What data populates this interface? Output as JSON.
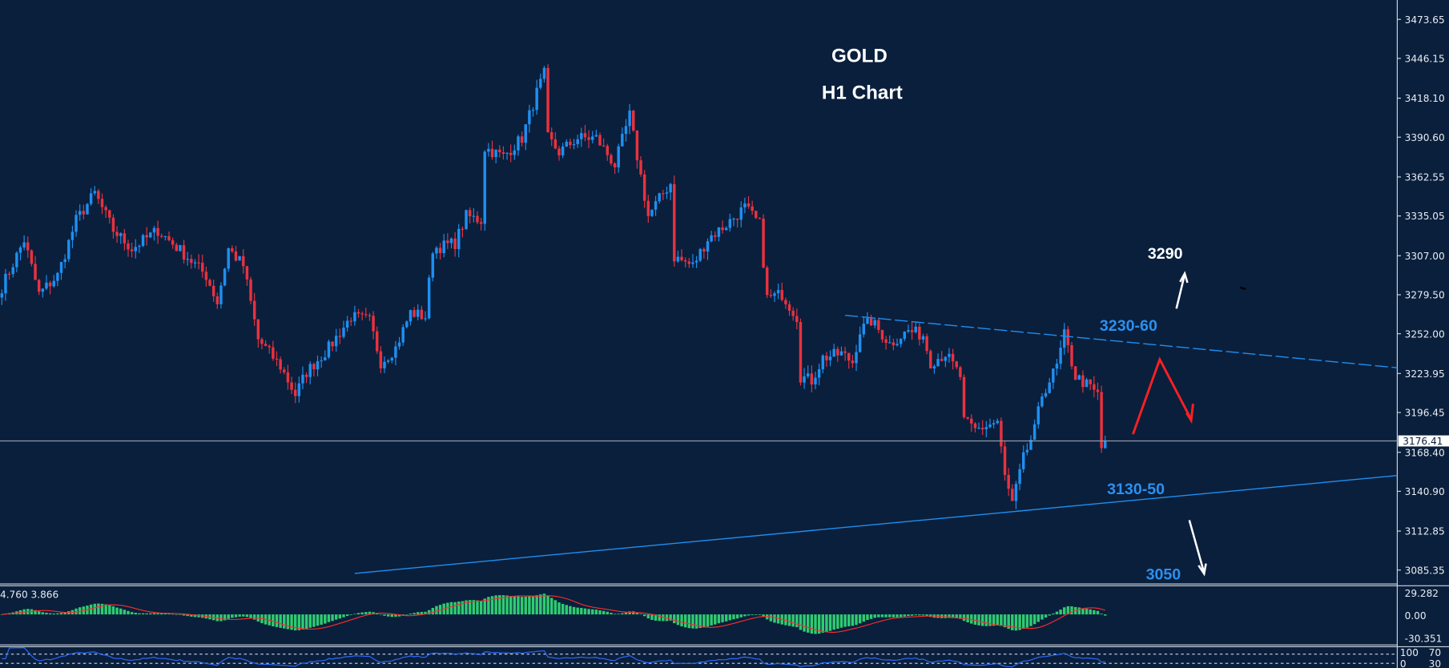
{
  "chart_data": {
    "type": "candlestick",
    "title": "GOLD",
    "subtitle": "H1 Chart",
    "colors": {
      "background": "#0a1f3c",
      "up": "#1e8ff0",
      "down": "#e8323f",
      "trendline": "#1e8ff0",
      "macd_hist": "#2ecc71",
      "macd_signal": "#ff2b2b",
      "rsi": "#2f6bff"
    },
    "ylim": [
      3085.35,
      3473.65
    ],
    "y_ticks": [
      "3473.65",
      "3446.15",
      "3418.10",
      "3390.60",
      "3362.55",
      "3335.05",
      "3307.00",
      "3279.50",
      "3252.00",
      "3223.95",
      "3196.45",
      "3168.40",
      "3140.90",
      "3112.85",
      "3085.35"
    ],
    "current_price": "3176.41",
    "bar_count": 298,
    "price_path": [
      [
        0,
        3285
      ],
      [
        6,
        3318
      ],
      [
        10,
        3280
      ],
      [
        15,
        3293
      ],
      [
        20,
        3332
      ],
      [
        25,
        3351
      ],
      [
        30,
        3325
      ],
      [
        35,
        3312
      ],
      [
        42,
        3325
      ],
      [
        50,
        3306
      ],
      [
        55,
        3293
      ],
      [
        58,
        3274
      ],
      [
        61,
        3312
      ],
      [
        65,
        3300
      ],
      [
        69,
        3248
      ],
      [
        75,
        3229
      ],
      [
        79,
        3209
      ],
      [
        82,
        3225
      ],
      [
        88,
        3242
      ],
      [
        94,
        3264
      ],
      [
        99,
        3261
      ],
      [
        102,
        3232
      ],
      [
        106,
        3242
      ],
      [
        110,
        3267
      ],
      [
        114,
        3264
      ],
      [
        116,
        3312
      ],
      [
        122,
        3316
      ],
      [
        125,
        3335
      ],
      [
        129,
        3332
      ],
      [
        130,
        3383
      ],
      [
        135,
        3377
      ],
      [
        140,
        3390
      ],
      [
        144,
        3422
      ],
      [
        146,
        3435
      ],
      [
        147,
        3390
      ],
      [
        150,
        3380
      ],
      [
        155,
        3390
      ],
      [
        160,
        3390
      ],
      [
        165,
        3371
      ],
      [
        169,
        3406
      ],
      [
        171,
        3377
      ],
      [
        174,
        3335
      ],
      [
        178,
        3351
      ],
      [
        180,
        3358
      ],
      [
        181,
        3306
      ],
      [
        186,
        3300
      ],
      [
        190,
        3319
      ],
      [
        195,
        3329
      ],
      [
        200,
        3341
      ],
      [
        204,
        3329
      ],
      [
        206,
        3277
      ],
      [
        210,
        3280
      ],
      [
        214,
        3264
      ],
      [
        215,
        3222
      ],
      [
        218,
        3219
      ],
      [
        221,
        3235
      ],
      [
        226,
        3238
      ],
      [
        229,
        3232
      ],
      [
        231,
        3254
      ],
      [
        234,
        3261
      ],
      [
        239,
        3245
      ],
      [
        244,
        3254
      ],
      [
        248,
        3251
      ],
      [
        250,
        3232
      ],
      [
        254,
        3238
      ],
      [
        258,
        3222
      ],
      [
        259,
        3190
      ],
      [
        262,
        3184
      ],
      [
        268,
        3190
      ],
      [
        270,
        3151
      ],
      [
        272,
        3132
      ],
      [
        275,
        3164
      ],
      [
        278,
        3184
      ],
      [
        280,
        3209
      ],
      [
        284,
        3229
      ],
      [
        286,
        3251
      ],
      [
        289,
        3222
      ],
      [
        292,
        3216
      ],
      [
        295,
        3209
      ],
      [
        296,
        3171
      ],
      [
        297,
        3176.41
      ]
    ],
    "trendlines": [
      {
        "style": "dashed",
        "from": [
          227,
          3265
        ],
        "to_price_at_axis": 3228
      },
      {
        "style": "solid",
        "from": [
          95,
          3083
        ],
        "to_price_at_axis": 3152
      }
    ],
    "annotations": {
      "target_up": "3290",
      "resistance": "3230-60",
      "support": "3130-50",
      "target_down": "3050"
    },
    "macd": {
      "label": "4.760 3.866",
      "ticks": [
        "29.282",
        "0.00",
        "-30.351"
      ]
    },
    "rsi": {
      "ticks": [
        "100",
        "70",
        "30",
        "0"
      ]
    }
  }
}
